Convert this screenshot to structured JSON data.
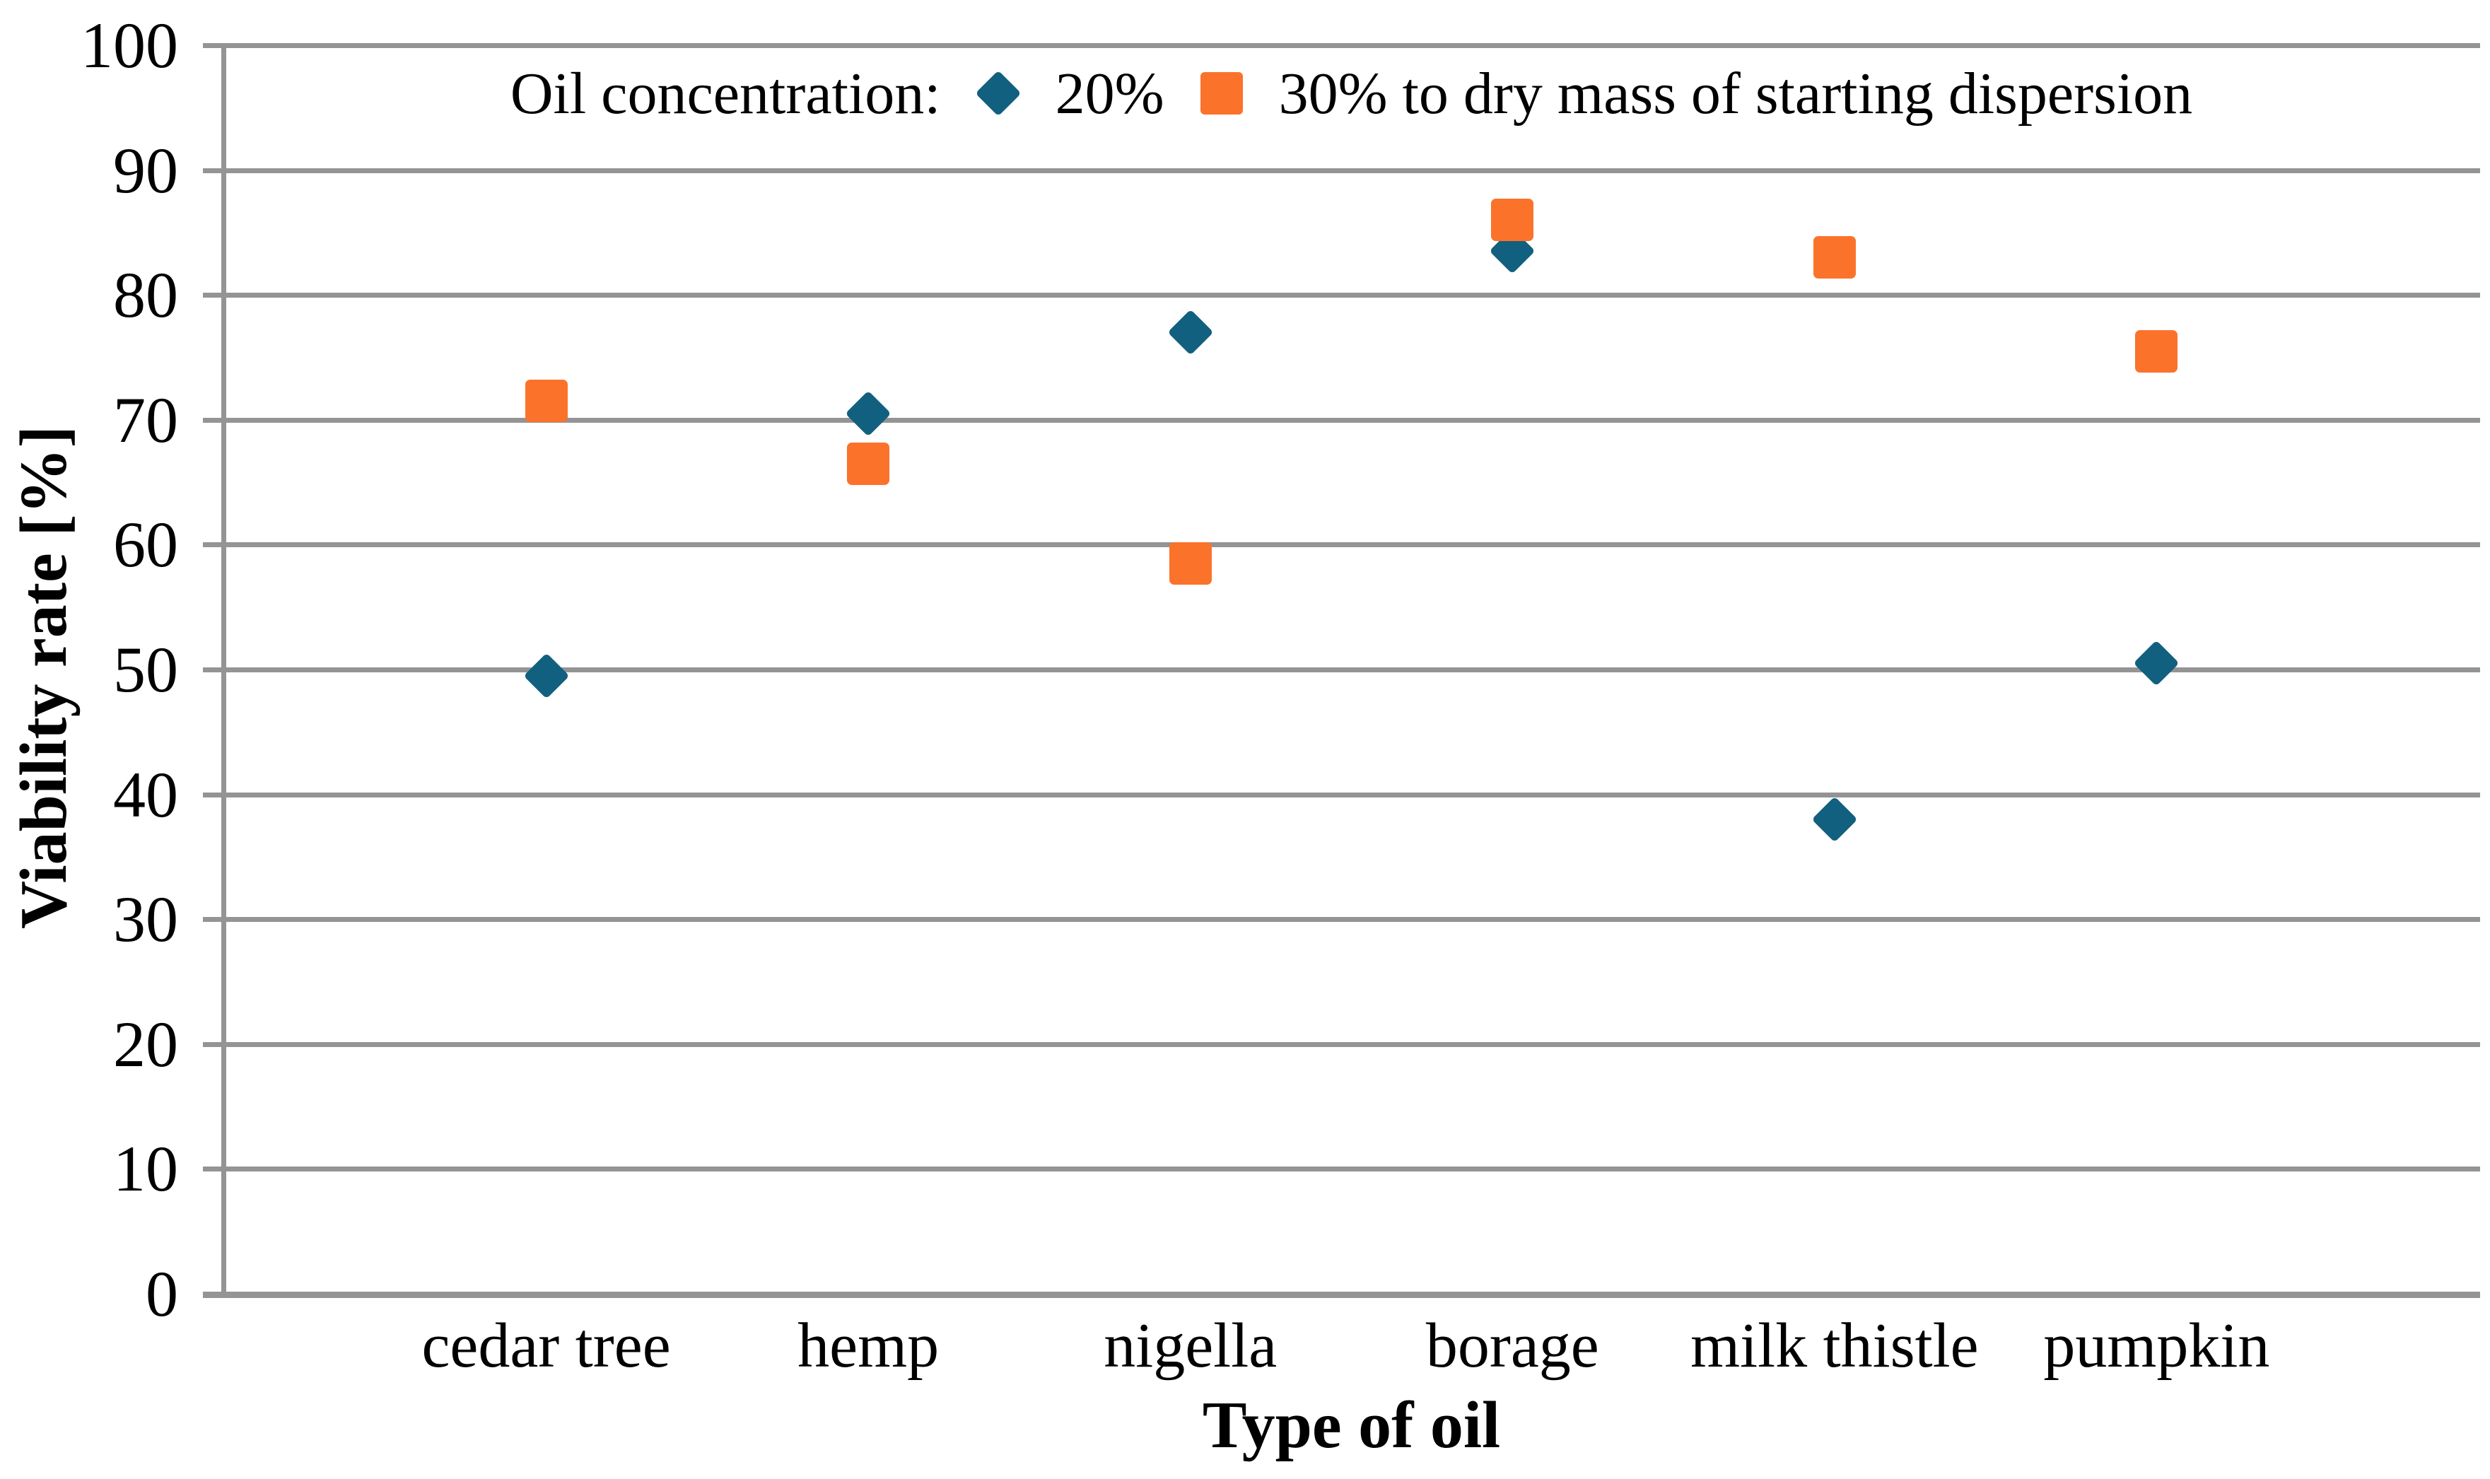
{
  "colors": {
    "series_20": "#12607F",
    "series_30": "#FB722B",
    "gridline": "#949494",
    "text": "#000000",
    "background": "#FFFFFF"
  },
  "legend": {
    "title": "Oil concentration:",
    "items": [
      {
        "marker": "diamond-icon",
        "label": "20%"
      },
      {
        "marker": "square-icon",
        "label": "30% to dry mass of starting dispersion"
      }
    ]
  },
  "chart_data": {
    "type": "scatter",
    "title": "",
    "xlabel": "Type of oil",
    "ylabel": "Viability rate [%]",
    "categories": [
      "cedar tree",
      "hemp",
      "nigella",
      "borage",
      "milk thistle",
      "pumpkin"
    ],
    "series": [
      {
        "name": "20%",
        "marker": "diamond",
        "color": "#12607F",
        "values": [
          49.5,
          70.5,
          77,
          83.5,
          38,
          50.5
        ]
      },
      {
        "name": "30% to dry mass of starting dispersion",
        "marker": "square",
        "color": "#FB722B",
        "values": [
          71.5,
          66.5,
          58.5,
          86,
          83,
          75.5
        ]
      }
    ],
    "ylim": [
      0,
      100
    ],
    "yticks": [
      0,
      10,
      20,
      30,
      40,
      50,
      60,
      70,
      80,
      90,
      100
    ],
    "grid": "horizontal-only",
    "legend_position": "top-center"
  }
}
